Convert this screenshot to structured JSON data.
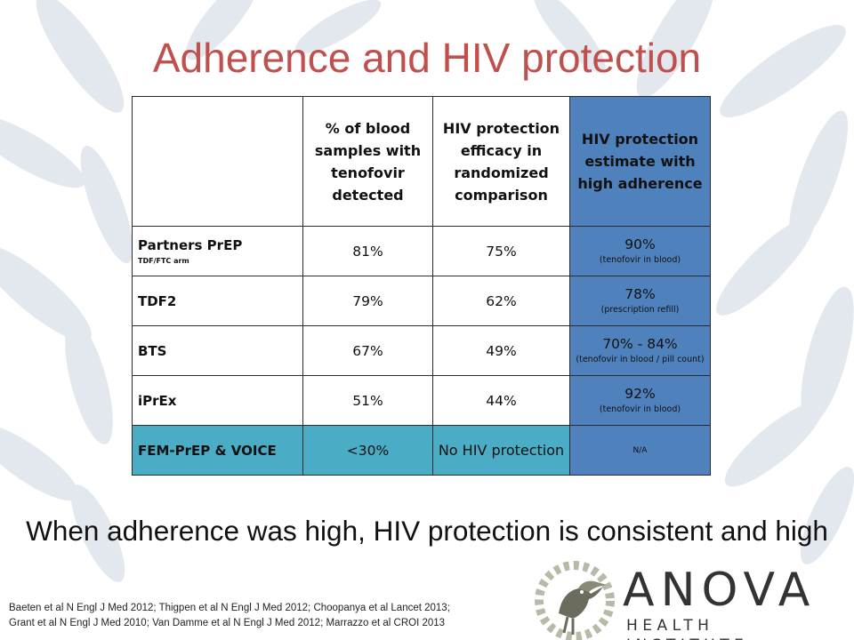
{
  "slide": {
    "title": "Adherence and HIV protection",
    "takeaway": "When adherence was high, HIV protection is consistent and high",
    "references": [
      "Baeten et al N Engl J Med 2012; Thigpen et al N Engl J Med 2012; Choopanya et al Lancet 2013;",
      "Grant et al N Engl J Med 2010; Van Damme et al N Engl J Med 2012; Marrazzo et al CROI 2013"
    ]
  },
  "table": {
    "headers": [
      "",
      "% of blood samples with tenofovir detected",
      "HIV protection efficacy in randomized comparison",
      "HIV protection estimate with high adherence"
    ],
    "rows": [
      {
        "study": "Partners PrEP",
        "sub": "TDF/FTC arm",
        "detected": "81%",
        "efficacy": "75%",
        "estimate": "90%",
        "note": "(tenofovir in blood)"
      },
      {
        "study": "TDF2",
        "sub": "",
        "detected": "79%",
        "efficacy": "62%",
        "estimate": "78%",
        "note": "(prescription refill)"
      },
      {
        "study": "BTS",
        "sub": "",
        "detected": "67%",
        "efficacy": "49%",
        "estimate": "70% - 84%",
        "note": "(tenofovir in blood / pill count)"
      },
      {
        "study": "iPrEx",
        "sub": "",
        "detected": "51%",
        "efficacy": "44%",
        "estimate": "92%",
        "note": "(tenofovir in blood)"
      },
      {
        "study": "FEM-PrEP & VOICE",
        "sub": "",
        "detected": "<30%",
        "efficacy": "No HIV protection",
        "estimate": "N/A",
        "note": ""
      }
    ]
  },
  "logo": {
    "name": "ANOVA",
    "tagline": "HEALTH INSTITUTE"
  },
  "colors": {
    "title": "#c0504d",
    "estimate_column": "#4f81bd",
    "highlight_row": "#4bacc6",
    "leaf_pattern": "#e3e8ee"
  }
}
